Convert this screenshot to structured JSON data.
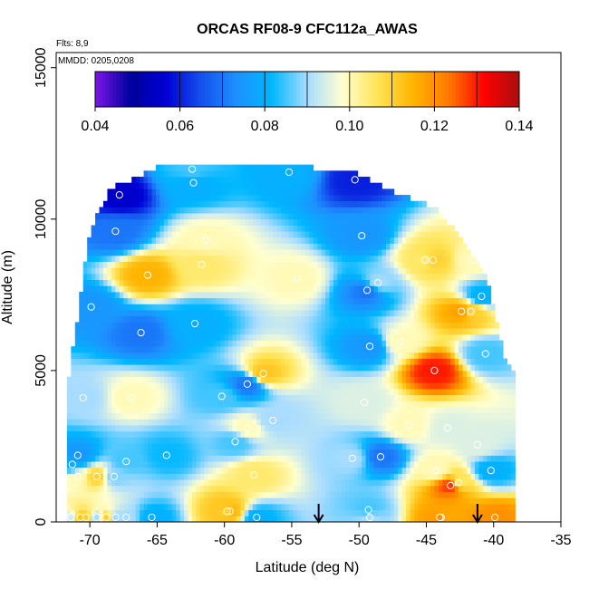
{
  "chart_data": {
    "type": "heatmap",
    "title": "ORCAS RF08-9 CFC112a_AWAS",
    "annotation_flts": "Flts: 8,9",
    "annotation_mmdd": "MMDD: 0205,0208",
    "xlabel": "Latitude (deg N)",
    "ylabel": "Altitude (m)",
    "xlim": [
      -72.5,
      -35
    ],
    "ylim": [
      0,
      15500
    ],
    "x_ticks": [
      -70,
      -65,
      -60,
      -55,
      -50,
      -45,
      -40,
      -35
    ],
    "x_tick_labels": [
      "-70",
      "-65",
      "-60",
      "-55",
      "-50",
      "-45",
      "-40",
      "-35"
    ],
    "y_ticks": [
      0,
      5000,
      10000,
      15000
    ],
    "y_tick_labels": [
      "0",
      "5000",
      "10000",
      "15000"
    ],
    "colorbar": {
      "range": [
        0.04,
        0.14
      ],
      "ticks": [
        0.04,
        0.06,
        0.08,
        0.1,
        0.12,
        0.14
      ],
      "tick_labels": [
        "0.04",
        "0.06",
        "0.08",
        "0.10",
        "0.12",
        "0.14"
      ],
      "colors": [
        "#7b16e6",
        "#00009e",
        "#0000d4",
        "#1450ec",
        "#1e90ff",
        "#00b7ff",
        "#a8dcff",
        "#ffffd0",
        "#ffe455",
        "#ffb400",
        "#ff7a00",
        "#ff0000",
        "#a80f0f"
      ]
    },
    "arrows_x": [
      -53,
      -41.2
    ],
    "samples": [
      {
        "x": -71.4,
        "y": 150,
        "v": 0.094
      },
      {
        "x": -70.7,
        "y": 150,
        "v": 0.112
      },
      {
        "x": -70.3,
        "y": 150,
        "v": 0.11
      },
      {
        "x": -69.5,
        "y": 150,
        "v": 0.09
      },
      {
        "x": -68.8,
        "y": 150,
        "v": 0.11
      },
      {
        "x": -68.1,
        "y": 150,
        "v": 0.09
      },
      {
        "x": -69.5,
        "y": 1500,
        "v": 0.11
      },
      {
        "x": -70.9,
        "y": 1500,
        "v": 0.1
      },
      {
        "x": -68.2,
        "y": 1500,
        "v": 0.088
      },
      {
        "x": -67.3,
        "y": 2000,
        "v": 0.085
      },
      {
        "x": -71.3,
        "y": 1900,
        "v": 0.08
      },
      {
        "x": -70.9,
        "y": 2200,
        "v": 0.075
      },
      {
        "x": -70.5,
        "y": 4100,
        "v": 0.09
      },
      {
        "x": -66.9,
        "y": 4100,
        "v": 0.1
      },
      {
        "x": -60.2,
        "y": 4150,
        "v": 0.085
      },
      {
        "x": -58.3,
        "y": 4550,
        "v": 0.07
      },
      {
        "x": -57.1,
        "y": 4900,
        "v": 0.112
      },
      {
        "x": -49.6,
        "y": 3950,
        "v": 0.095
      },
      {
        "x": -46.3,
        "y": 3200,
        "v": 0.1
      },
      {
        "x": -43.4,
        "y": 3100,
        "v": 0.095
      },
      {
        "x": -50.5,
        "y": 2100,
        "v": 0.09
      },
      {
        "x": -48.4,
        "y": 2150,
        "v": 0.07
      },
      {
        "x": -44.3,
        "y": 1700,
        "v": 0.1
      },
      {
        "x": -42.6,
        "y": 1300,
        "v": 0.105
      },
      {
        "x": -40.2,
        "y": 1700,
        "v": 0.08
      },
      {
        "x": -39.9,
        "y": 150,
        "v": 0.12
      },
      {
        "x": -43.9,
        "y": 150,
        "v": 0.115
      },
      {
        "x": -44.0,
        "y": 150,
        "v": 0.12
      },
      {
        "x": -43.2,
        "y": 1200,
        "v": 0.128
      },
      {
        "x": -49.3,
        "y": 400,
        "v": 0.085
      },
      {
        "x": -49.2,
        "y": 150,
        "v": 0.09
      },
      {
        "x": -57.6,
        "y": 150,
        "v": 0.08
      },
      {
        "x": -59.6,
        "y": 350,
        "v": 0.115
      },
      {
        "x": -59.8,
        "y": 350,
        "v": 0.11
      },
      {
        "x": -57.8,
        "y": 1550,
        "v": 0.105
      },
      {
        "x": -58.3,
        "y": 3100,
        "v": 0.1
      },
      {
        "x": -56.4,
        "y": 3350,
        "v": 0.09
      },
      {
        "x": -59.2,
        "y": 2650,
        "v": 0.085
      },
      {
        "x": -64.3,
        "y": 2200,
        "v": 0.082
      },
      {
        "x": -65.4,
        "y": 150,
        "v": 0.08
      },
      {
        "x": -67.3,
        "y": 150,
        "v": 0.09
      },
      {
        "x": -66.2,
        "y": 6250,
        "v": 0.07
      },
      {
        "x": -62.2,
        "y": 6550,
        "v": 0.08
      },
      {
        "x": -69.9,
        "y": 7100,
        "v": 0.075
      },
      {
        "x": -65.7,
        "y": 8150,
        "v": 0.115
      },
      {
        "x": -61.7,
        "y": 8500,
        "v": 0.105
      },
      {
        "x": -61.4,
        "y": 9300,
        "v": 0.1
      },
      {
        "x": -68.1,
        "y": 9600,
        "v": 0.07
      },
      {
        "x": -67.8,
        "y": 10800,
        "v": 0.055
      },
      {
        "x": -62.3,
        "y": 11200,
        "v": 0.08
      },
      {
        "x": -62.4,
        "y": 11650,
        "v": 0.085
      },
      {
        "x": -55.2,
        "y": 11550,
        "v": 0.08
      },
      {
        "x": -50.3,
        "y": 11300,
        "v": 0.06
      },
      {
        "x": -49.8,
        "y": 9450,
        "v": 0.075
      },
      {
        "x": -54.6,
        "y": 8050,
        "v": 0.1
      },
      {
        "x": -49.4,
        "y": 7650,
        "v": 0.07
      },
      {
        "x": -49.2,
        "y": 5800,
        "v": 0.075
      },
      {
        "x": -46.9,
        "y": 5950,
        "v": 0.1
      },
      {
        "x": -45.1,
        "y": 8650,
        "v": 0.105
      },
      {
        "x": -44.5,
        "y": 8650,
        "v": 0.11
      },
      {
        "x": -42.4,
        "y": 6950,
        "v": 0.118
      },
      {
        "x": -41.5,
        "y": 8650,
        "v": 0.1
      },
      {
        "x": -41.7,
        "y": 6950,
        "v": 0.11
      },
      {
        "x": -40.9,
        "y": 7450,
        "v": 0.08
      },
      {
        "x": -40.6,
        "y": 5550,
        "v": 0.085
      },
      {
        "x": -41.2,
        "y": 2550,
        "v": 0.095
      },
      {
        "x": -44.4,
        "y": 5000,
        "v": 0.13
      },
      {
        "x": -48.6,
        "y": 7900,
        "v": 0.09
      }
    ]
  }
}
